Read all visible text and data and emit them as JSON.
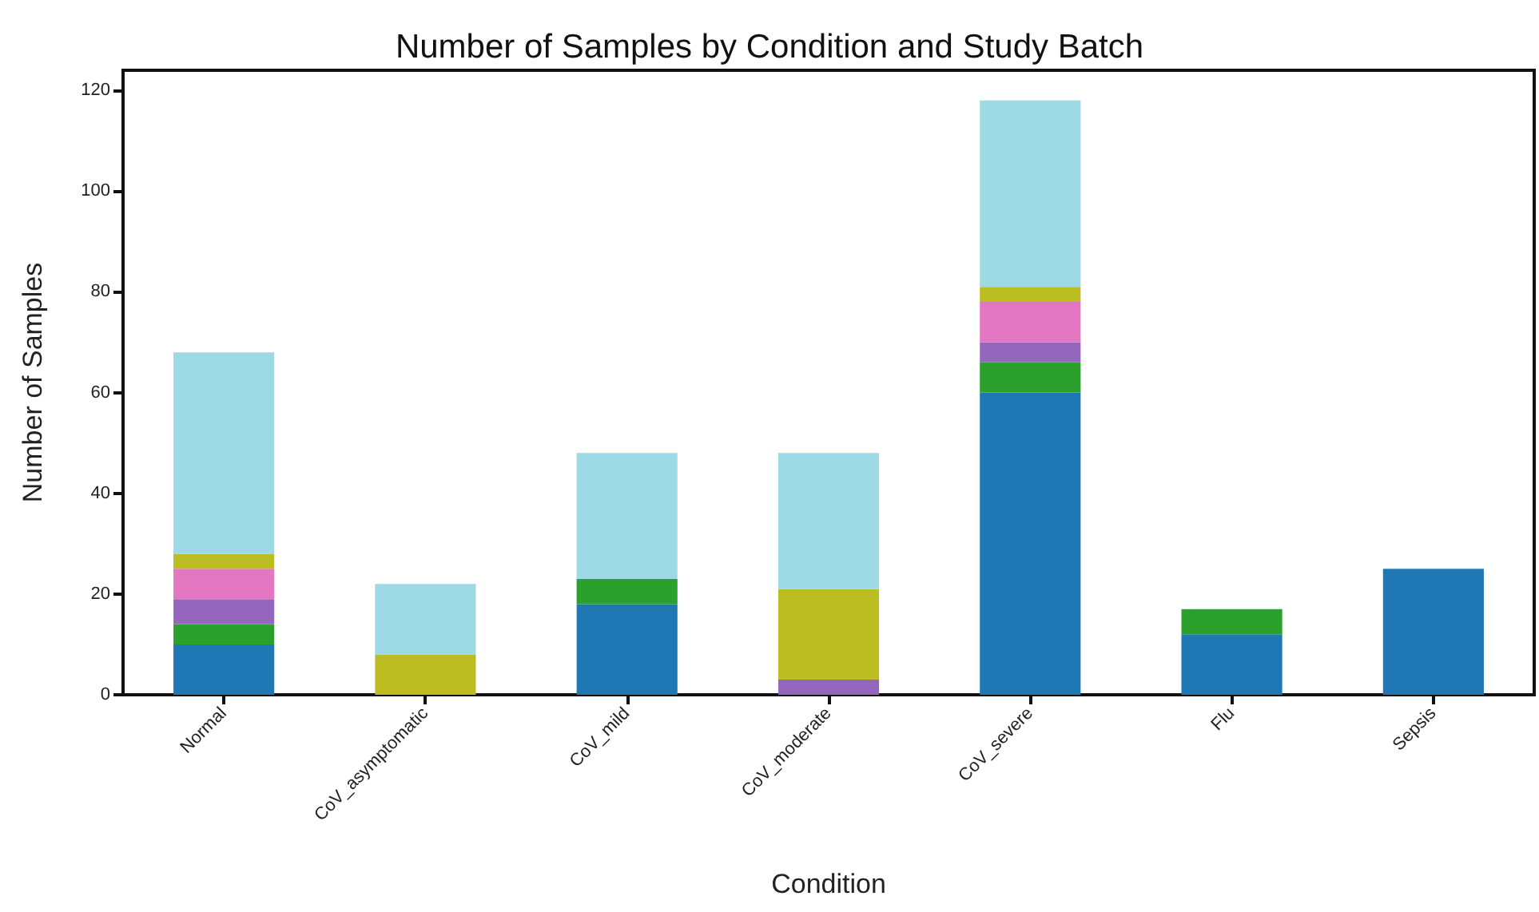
{
  "chart_data": {
    "type": "bar",
    "stacked": true,
    "title": "Number of Samples by Condition and Study Batch",
    "xlabel": "Condition",
    "ylabel": "Number of Samples",
    "categories": [
      "Normal",
      "CoV_asymptomatic",
      "CoV_mild",
      "CoV_moderate",
      "CoV_severe",
      "Flu",
      "Sepsis"
    ],
    "series": [
      {
        "color": "#1f77b4",
        "values": [
          10,
          null,
          18,
          null,
          60,
          12,
          25
        ]
      },
      {
        "color": "#2ca02c",
        "values": [
          4,
          null,
          5,
          null,
          6,
          5,
          null
        ]
      },
      {
        "color": "#9467bd",
        "values": [
          5,
          null,
          null,
          3,
          4,
          null,
          null
        ]
      },
      {
        "color": "#e377c2",
        "values": [
          6,
          null,
          null,
          null,
          8,
          null,
          null
        ]
      },
      {
        "color": "#bcbd22",
        "values": [
          3,
          8,
          null,
          18,
          3,
          null,
          null
        ]
      },
      {
        "color": "#9edae5",
        "values": [
          40,
          14,
          25,
          27,
          37,
          null,
          null
        ]
      }
    ],
    "ylim": [
      0,
      124
    ],
    "yticks": [
      0,
      20,
      40,
      60,
      80,
      100,
      120
    ],
    "grid": false
  }
}
